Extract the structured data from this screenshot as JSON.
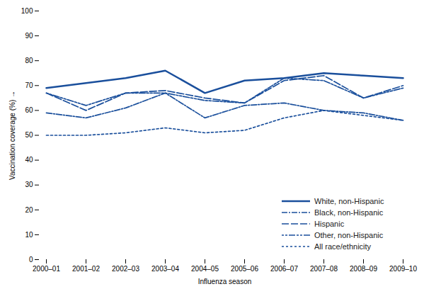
{
  "chart_data": {
    "type": "line",
    "xlabel": "Influenza season",
    "ylabel": "Vaccination coverage (%)",
    "categories": [
      "2000–01",
      "2001–02",
      "2002–03",
      "2003–04",
      "2004–05",
      "2005–06",
      "2006–07",
      "2007–08",
      "2008–09",
      "2009–10"
    ],
    "series": [
      {
        "name": "White, non-Hispanic",
        "color": "#1a4f9c",
        "line_style": "solid",
        "values": [
          69,
          71,
          73,
          76,
          67,
          72,
          73,
          75,
          74,
          73
        ]
      },
      {
        "name": "Black, non-Hispanic",
        "color": "#1a4f9c",
        "line_style": "dashdot",
        "values": [
          59,
          57,
          61,
          67,
          57,
          62,
          63,
          60,
          59,
          56
        ]
      },
      {
        "name": "Hispanic",
        "color": "#1a4f9c",
        "line_style": "dashed",
        "values": [
          67,
          60,
          67,
          68,
          65,
          63,
          72,
          74,
          65,
          70
        ]
      },
      {
        "name": "Other, non-Hispanic",
        "color": "#1a4f9c",
        "line_style": "dotdotdash",
        "values": [
          67,
          62,
          67,
          67,
          64,
          63,
          73,
          72,
          65,
          69
        ]
      },
      {
        "name": "All race/ethnicity",
        "color": "#1a4f9c",
        "line_style": "dotted",
        "values": [
          50,
          50,
          51,
          53,
          51,
          52,
          57,
          60,
          58,
          56
        ]
      }
    ],
    "ylim": [
      0,
      100
    ],
    "yticks": [
      0,
      10,
      20,
      30,
      40,
      50,
      60,
      70,
      80,
      90,
      100
    ],
    "grid": false,
    "legend": "lower right"
  }
}
